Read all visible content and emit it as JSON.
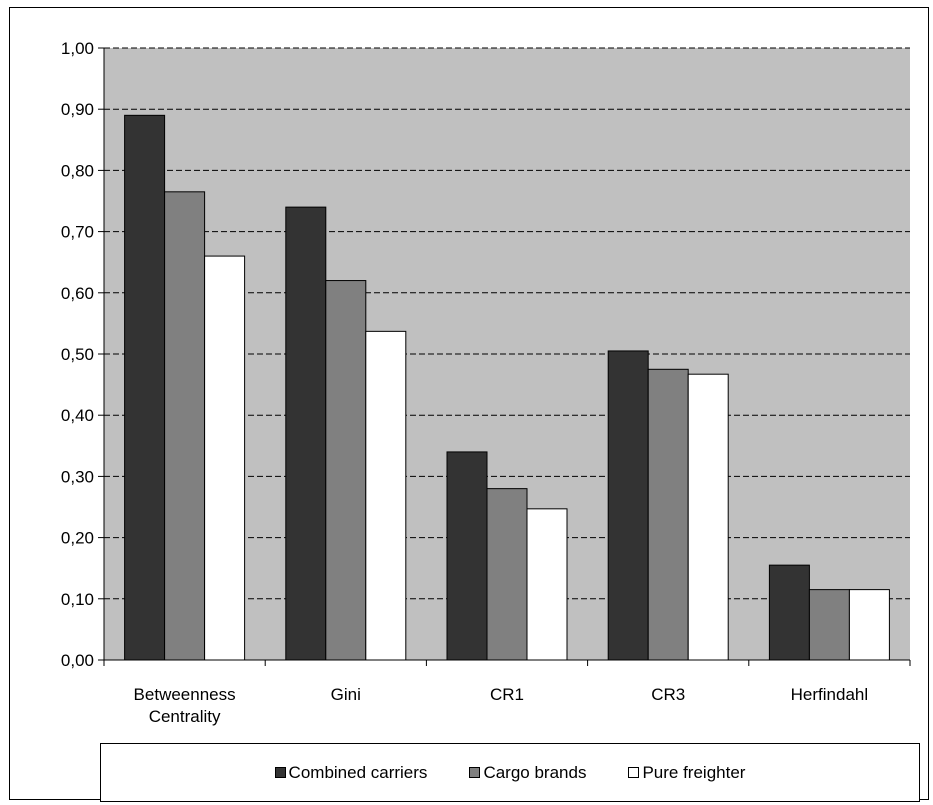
{
  "chart_data": {
    "type": "bar",
    "title": "",
    "xlabel": "",
    "ylabel": "",
    "ylim": [
      0,
      1.0
    ],
    "y_ticks": [
      "0,00",
      "0,10",
      "0,20",
      "0,30",
      "0,40",
      "0,50",
      "0,60",
      "0,70",
      "0,80",
      "0,90",
      "1,00"
    ],
    "grid": "horizontal dashed",
    "plot_background": "#c0c0c0",
    "legend_position": "bottom",
    "categories": [
      [
        "Betweenness",
        "Centrality"
      ],
      [
        "Gini"
      ],
      [
        "CR1"
      ],
      [
        "CR3"
      ],
      [
        "Herfindahl"
      ]
    ],
    "series": [
      {
        "name": "Combined carriers",
        "color": "#333333",
        "values": [
          0.89,
          0.74,
          0.34,
          0.505,
          0.155
        ]
      },
      {
        "name": "Cargo brands",
        "color": "#808080",
        "values": [
          0.765,
          0.62,
          0.28,
          0.475,
          0.115
        ]
      },
      {
        "name": "Pure freighter",
        "color": "#ffffff",
        "values": [
          0.66,
          0.537,
          0.247,
          0.467,
          0.115
        ]
      }
    ]
  }
}
